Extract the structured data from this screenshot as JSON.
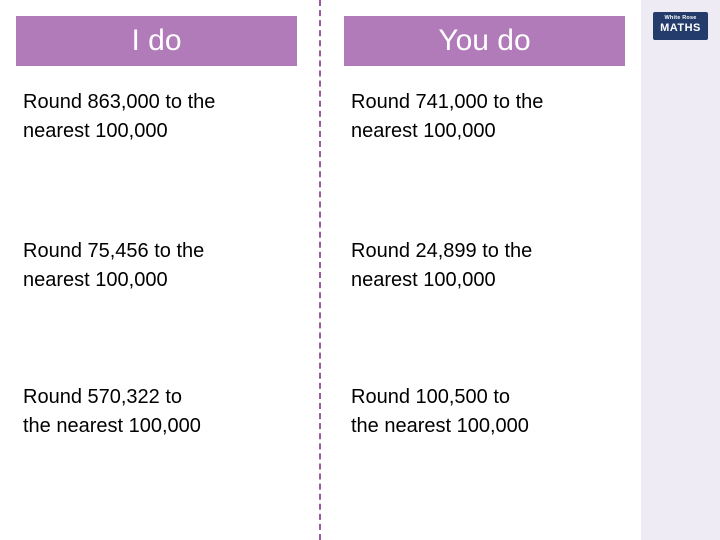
{
  "logo": {
    "line1": "White Rose",
    "line2": "MATHS"
  },
  "left": {
    "header": "I do",
    "questions": [
      "Round 863,000 to the\nnearest 100,000",
      "Round 75,456 to the\nnearest 100,000",
      "Round 570,322 to\nthe nearest 100,000"
    ]
  },
  "right": {
    "header": "You do",
    "questions": [
      "Round 741,000 to the\nnearest 100,000",
      "Round 24,899 to the\nnearest 100,000",
      "Round 100,500 to\nthe nearest 100,000"
    ]
  },
  "colors": {
    "header_bg": "#b07bb8",
    "divider": "#9c5aa1",
    "sidebar_bg": "#efebf4",
    "logo_bg": "#243c6b"
  }
}
